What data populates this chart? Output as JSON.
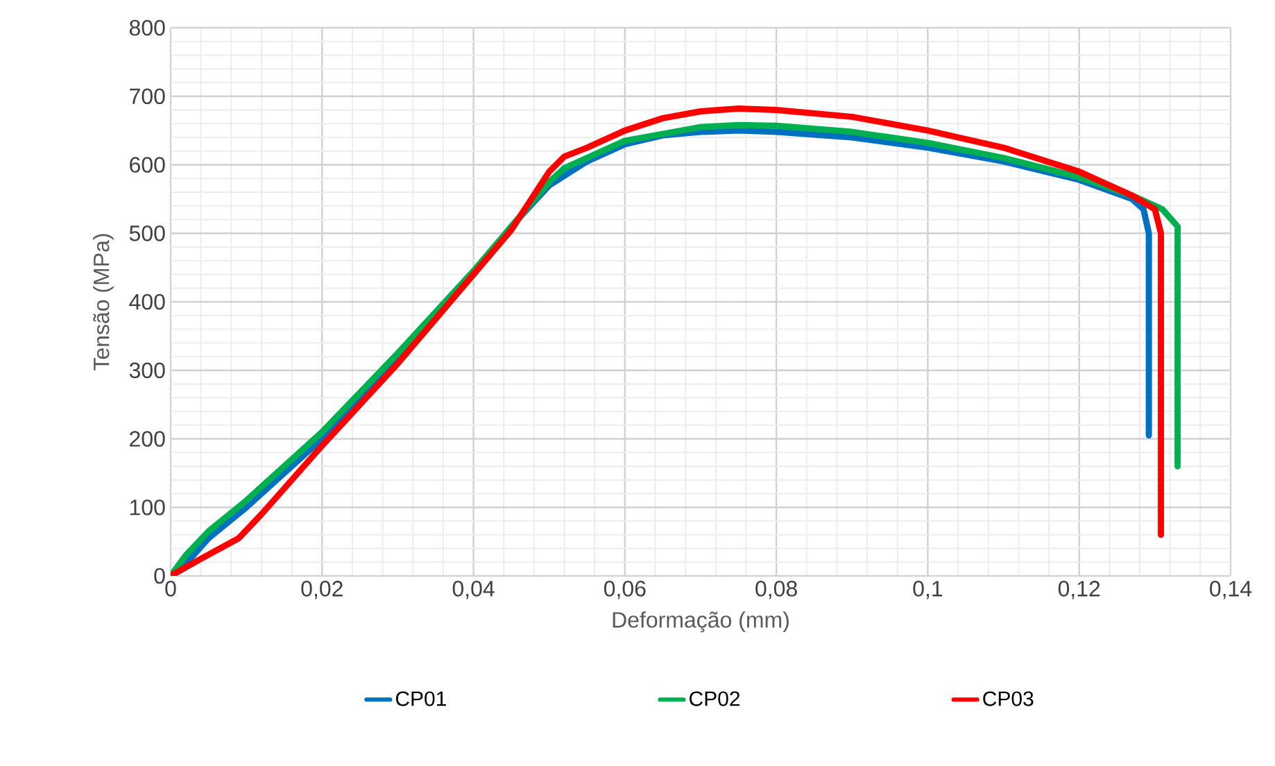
{
  "chart_data": {
    "type": "line",
    "xlabel": "Deformação (mm)",
    "ylabel": "Tensão (MPa)",
    "xlim": [
      0,
      0.14
    ],
    "ylim": [
      0,
      800
    ],
    "xticks": [
      0,
      {
        "value": 0.02,
        "label": "0,02"
      },
      {
        "value": 0.04,
        "label": "0,04"
      },
      {
        "value": 0.06,
        "label": "0,06"
      },
      {
        "value": 0.08,
        "label": "0,08"
      },
      {
        "value": 0.1,
        "label": "0,1"
      },
      {
        "value": 0.12,
        "label": "0,12"
      },
      {
        "value": 0.14,
        "label": "0,14"
      }
    ],
    "yticks": [
      0,
      100,
      200,
      300,
      400,
      500,
      600,
      700,
      800
    ],
    "grid": true,
    "legend": "bottom",
    "marker": "none",
    "line_style": "solid",
    "series": [
      {
        "name": "CP01",
        "color": "#0070c0",
        "x": [
          0,
          0.003,
          0.005,
          0.01,
          0.02,
          0.03,
          0.04,
          0.045,
          0.05,
          0.055,
          0.06,
          0.065,
          0.07,
          0.075,
          0.08,
          0.09,
          0.1,
          0.11,
          0.12,
          0.127,
          0.1285,
          0.1292,
          0.1292
        ],
        "values": [
          0,
          30,
          55,
          100,
          200,
          320,
          440,
          510,
          570,
          605,
          630,
          643,
          648,
          650,
          648,
          640,
          625,
          605,
          578,
          550,
          535,
          500,
          205
        ]
      },
      {
        "name": "CP02",
        "color": "#00b050",
        "x": [
          0,
          0.002,
          0.005,
          0.01,
          0.02,
          0.03,
          0.04,
          0.045,
          0.05,
          0.052,
          0.06,
          0.07,
          0.075,
          0.08,
          0.09,
          0.1,
          0.11,
          0.12,
          0.127,
          0.131,
          0.133,
          0.133
        ],
        "values": [
          0,
          30,
          65,
          110,
          210,
          325,
          445,
          510,
          575,
          595,
          635,
          655,
          658,
          657,
          648,
          632,
          610,
          582,
          555,
          535,
          510,
          160
        ]
      },
      {
        "name": "CP03",
        "color": "#ff0000",
        "x": [
          0,
          0.004,
          0.009,
          0.012,
          0.02,
          0.03,
          0.04,
          0.045,
          0.05,
          0.052,
          0.055,
          0.06,
          0.065,
          0.07,
          0.075,
          0.08,
          0.09,
          0.1,
          0.11,
          0.12,
          0.127,
          0.13,
          0.1308,
          0.1308
        ],
        "values": [
          0,
          25,
          55,
          90,
          190,
          310,
          440,
          505,
          590,
          612,
          625,
          650,
          668,
          678,
          682,
          680,
          670,
          650,
          625,
          590,
          555,
          535,
          500,
          60
        ]
      }
    ]
  }
}
